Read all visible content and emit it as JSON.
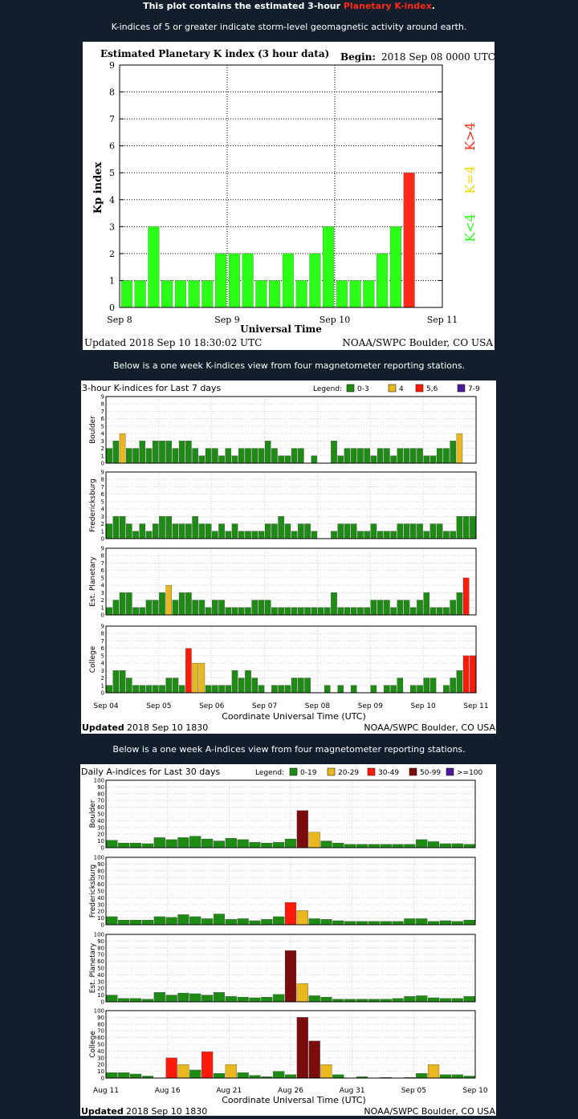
{
  "header": {
    "line1_prefix": "This plot contains the estimated 3-hour",
    "line1_link": "Planetary K-index",
    "line1_suffix": ".",
    "line2": "K-indices of 5 or greater indicate storm-level geomagnetic activity around earth.",
    "line3": "Below is a one week K-indices view from four magnetometer reporting stations.",
    "line4": "Below is a one week A-indices view from four magnetometer reporting stations."
  },
  "colors": {
    "page_bg": "#121e2c",
    "green": "#2bff17",
    "yellow": "#f5d800",
    "red": "#ff2a1a",
    "dark_green": "#1e8c14",
    "gold": "#e8b81e",
    "bright_red": "#ff1a0a",
    "dark_red": "#7a0c0c",
    "purple": "#4b1a99"
  },
  "chart_data": [
    {
      "type": "bar",
      "title": "Estimated Planetary K index (3 hour data)",
      "begin_label": "Begin:",
      "begin_value": "2018 Sep 08 0000 UTC",
      "xlabel": "Universal Time",
      "ylabel": "Kp index",
      "ylim": [
        0,
        9
      ],
      "yticks": [
        "0",
        "1",
        "2",
        "3",
        "4",
        "5",
        "6",
        "7",
        "8",
        "9"
      ],
      "xticks": [
        "Sep 8",
        "Sep 9",
        "Sep 10",
        "Sep 11"
      ],
      "legend": [
        "K>4",
        "K=4",
        "K<4"
      ],
      "values": [
        1,
        1,
        3,
        1,
        1,
        1,
        1,
        2,
        2,
        2,
        1,
        1,
        2,
        1,
        2,
        3,
        1,
        1,
        1,
        2,
        3,
        5
      ],
      "footer_left": "Updated 2018 Sep 10 18:30:02 UTC",
      "footer_right": "NOAA/SWPC Boulder, CO USA"
    },
    {
      "type": "bar",
      "title": "3-hour K-indices for Last 7 days",
      "legend_label": "Legend:",
      "legend": [
        "0-3",
        "4",
        "5,6",
        "7-9"
      ],
      "ylim": [
        0,
        9
      ],
      "yticks": [
        "0",
        "1",
        "2",
        "3",
        "4",
        "5",
        "6",
        "7",
        "8",
        "9"
      ],
      "xticks": [
        "Sep 04",
        "Sep 05",
        "Sep 06",
        "Sep 07",
        "Sep 08",
        "Sep 09",
        "Sep 10",
        "Sep 11"
      ],
      "xlabel": "Coordinate Universal Time (UTC)",
      "footer_bold": "Updated",
      "footer_left": "2018 Sep 10 1830",
      "footer_right": "NOAA/SWPC Boulder, CO USA",
      "stations": [
        {
          "name": "Boulder",
          "values": [
            2,
            3,
            4,
            2,
            2,
            3,
            2,
            3,
            3,
            3,
            2,
            3,
            3,
            2,
            1,
            2,
            2,
            1,
            2,
            1,
            2,
            2,
            2,
            2,
            3,
            2,
            1,
            1,
            2,
            2,
            0,
            1,
            0,
            0,
            3,
            1,
            2,
            2,
            2,
            2,
            1,
            2,
            2,
            1,
            2,
            2,
            2,
            2,
            1,
            1,
            2,
            2,
            3,
            4,
            0,
            0
          ]
        },
        {
          "name": "Fredericksburg",
          "values": [
            2,
            3,
            3,
            2,
            1,
            2,
            1,
            2,
            3,
            3,
            2,
            2,
            2,
            3,
            2,
            2,
            1,
            2,
            1,
            2,
            1,
            1,
            1,
            1,
            2,
            2,
            3,
            2,
            1,
            2,
            2,
            1,
            0,
            0,
            1,
            2,
            2,
            2,
            1,
            1,
            2,
            1,
            1,
            1,
            2,
            2,
            2,
            2,
            1,
            2,
            2,
            1,
            1,
            3,
            3,
            3,
            0,
            0
          ]
        },
        {
          "name": "Est. Planetary",
          "values": [
            1,
            2,
            3,
            3,
            1,
            1,
            2,
            2,
            3,
            4,
            2,
            3,
            3,
            2,
            2,
            1,
            2,
            2,
            1,
            1,
            1,
            1,
            2,
            2,
            2,
            1,
            1,
            1,
            1,
            1,
            1,
            1,
            1,
            1,
            3,
            1,
            1,
            1,
            1,
            1,
            2,
            2,
            2,
            1,
            2,
            2,
            1,
            2,
            3,
            1,
            1,
            1,
            2,
            3,
            5,
            0,
            0
          ]
        },
        {
          "name": "College",
          "values": [
            1,
            3,
            3,
            2,
            1,
            1,
            1,
            1,
            1,
            2,
            2,
            1,
            6,
            4,
            4,
            1,
            1,
            1,
            1,
            3,
            2,
            3,
            2,
            1,
            0,
            1,
            1,
            1,
            2,
            2,
            2,
            0,
            0,
            1,
            0,
            1,
            0,
            1,
            0,
            0,
            1,
            0,
            1,
            1,
            2,
            0,
            1,
            1,
            2,
            2,
            0,
            1,
            2,
            3,
            5,
            5,
            0,
            0
          ]
        }
      ]
    },
    {
      "type": "bar",
      "title": "Daily A-indices for Last 30 days",
      "legend_label": "Legend:",
      "legend": [
        "0-19",
        "20-29",
        "30-49",
        "50-99",
        ">=100"
      ],
      "ylim": [
        0,
        100
      ],
      "yticks": [
        "0",
        "10",
        "20",
        "30",
        "40",
        "50",
        "60",
        "70",
        "80",
        "90",
        "100"
      ],
      "xticks": [
        "Aug 11",
        "Aug 16",
        "Aug 21",
        "Aug 26",
        "Aug 31",
        "Sep 05",
        "Sep 10"
      ],
      "xlabel": "Coordinate Universal Time (UTC)",
      "footer_bold": "Updated",
      "footer_left": "2018 Sep 10 1830",
      "footer_right": "NOAA/SWPC Boulder, CO USA",
      "stations": [
        {
          "name": "Boulder",
          "values": [
            11,
            7,
            7,
            6,
            15,
            12,
            15,
            17,
            13,
            10,
            14,
            12,
            8,
            7,
            8,
            13,
            55,
            23,
            10,
            7,
            5,
            5,
            5,
            5,
            5,
            5,
            12,
            9,
            6,
            6,
            5
          ]
        },
        {
          "name": "Fredericksburg",
          "values": [
            12,
            7,
            7,
            7,
            12,
            11,
            15,
            12,
            9,
            16,
            8,
            9,
            6,
            8,
            12,
            33,
            21,
            9,
            8,
            6,
            5,
            5,
            5,
            5,
            5,
            9,
            9,
            5,
            6,
            5,
            7
          ]
        },
        {
          "name": "Est. Planetary",
          "values": [
            10,
            5,
            5,
            4,
            14,
            10,
            13,
            12,
            10,
            14,
            8,
            7,
            6,
            7,
            11,
            76,
            27,
            9,
            7,
            4,
            4,
            4,
            4,
            4,
            5,
            8,
            9,
            6,
            5,
            5,
            8
          ]
        },
        {
          "name": "College",
          "values": [
            8,
            8,
            6,
            3,
            0,
            30,
            20,
            12,
            39,
            7,
            20,
            8,
            4,
            2,
            10,
            5,
            90,
            55,
            20,
            5,
            0,
            2,
            0,
            1,
            0,
            1,
            7,
            20,
            5,
            5,
            3
          ]
        }
      ]
    }
  ]
}
